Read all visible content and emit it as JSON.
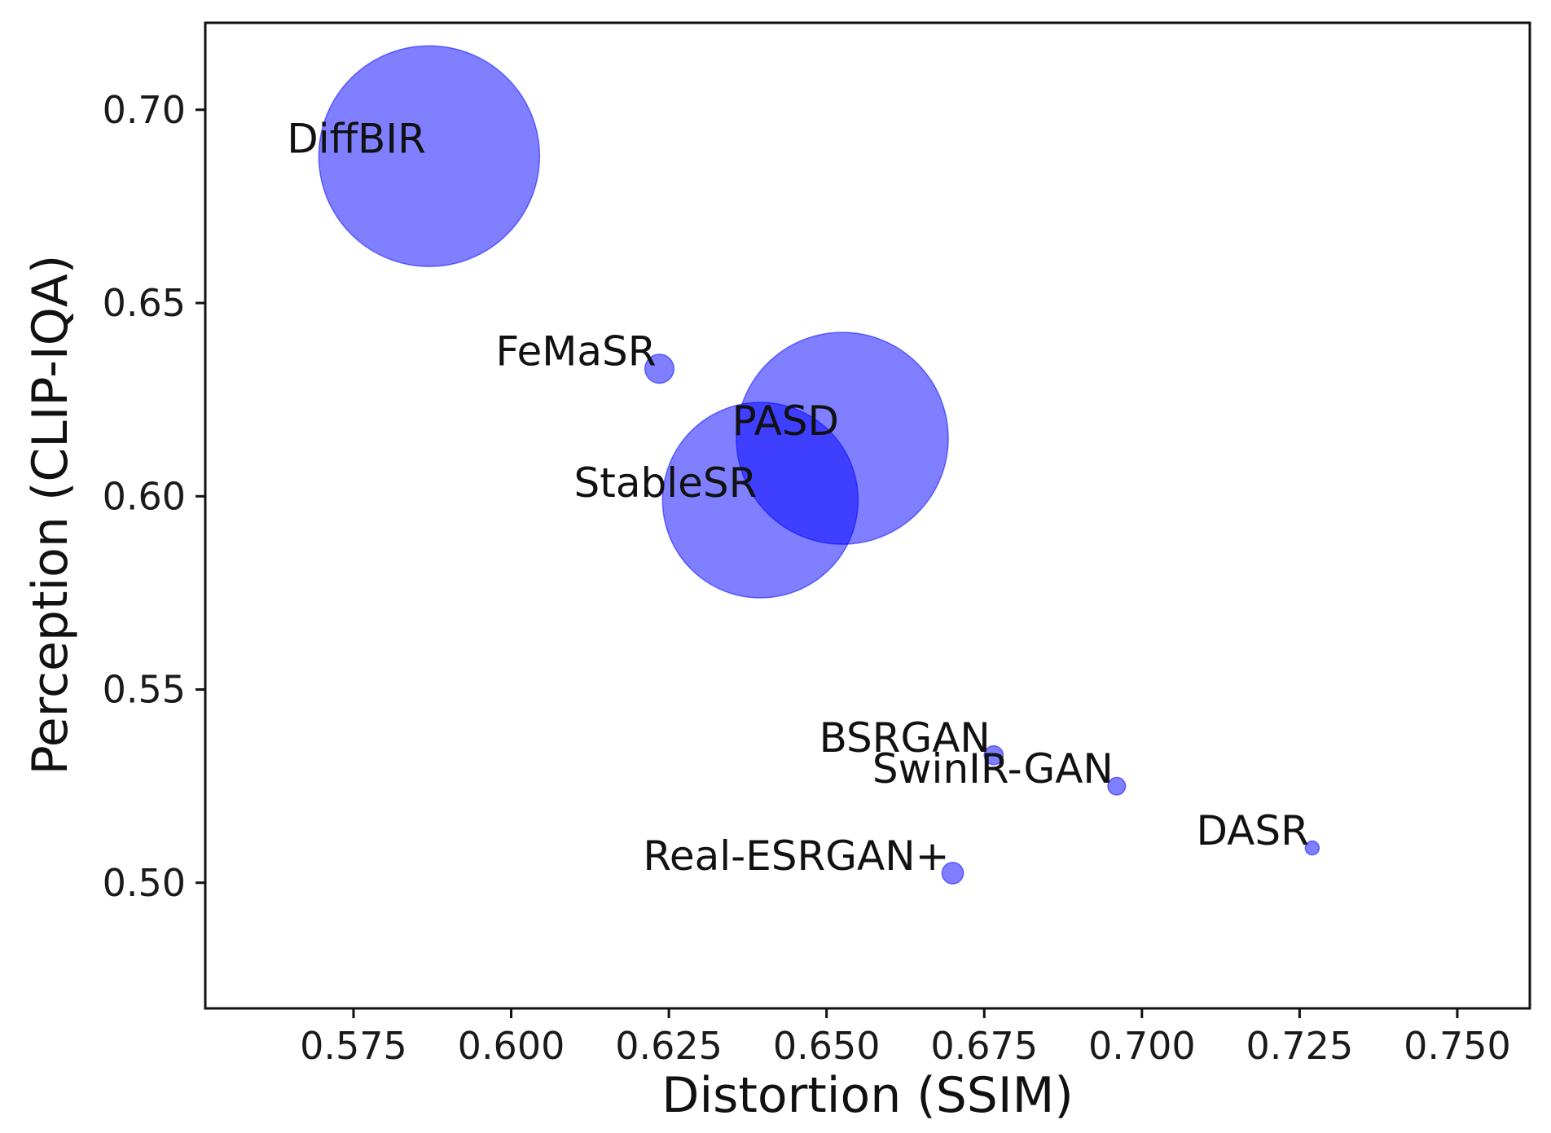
{
  "chart_data": {
    "type": "scatter",
    "title": "",
    "xlabel": "Distortion (SSIM)",
    "ylabel": "Perception (CLIP-IQA)",
    "xlim": [
      0.5515,
      0.7615
    ],
    "ylim": [
      0.4675,
      0.7225
    ],
    "xticks": [
      0.575,
      0.6,
      0.625,
      0.65,
      0.675,
      0.7,
      0.725,
      0.75
    ],
    "xtick_labels": [
      "0.575",
      "0.600",
      "0.625",
      "0.650",
      "0.675",
      "0.700",
      "0.725",
      "0.750"
    ],
    "yticks": [
      0.5,
      0.55,
      0.6,
      0.65,
      0.7
    ],
    "ytick_labels": [
      "0.50",
      "0.55",
      "0.60",
      "0.65",
      "0.70"
    ],
    "grid": false,
    "marker_color": "#0000ff",
    "marker_alpha": 0.5,
    "size_note": "Bubble size encodes a third (unlabeled) quantity; values below are relative bubble radii in data units of the x-axis.",
    "points": [
      {
        "name": "DiffBIR",
        "x": 0.587,
        "y": 0.688,
        "size": 0.0175
      },
      {
        "name": "FeMaSR",
        "x": 0.6235,
        "y": 0.633,
        "size": 0.0023
      },
      {
        "name": "PASD",
        "x": 0.6525,
        "y": 0.615,
        "size": 0.0168
      },
      {
        "name": "StableSR",
        "x": 0.6395,
        "y": 0.599,
        "size": 0.0155
      },
      {
        "name": "BSRGAN",
        "x": 0.6765,
        "y": 0.533,
        "size": 0.0015
      },
      {
        "name": "SwinIR-GAN",
        "x": 0.696,
        "y": 0.525,
        "size": 0.0014
      },
      {
        "name": "DASR",
        "x": 0.727,
        "y": 0.509,
        "size": 0.0011
      },
      {
        "name": "Real-ESRGAN+",
        "x": 0.67,
        "y": 0.5025,
        "size": 0.0017
      }
    ]
  }
}
